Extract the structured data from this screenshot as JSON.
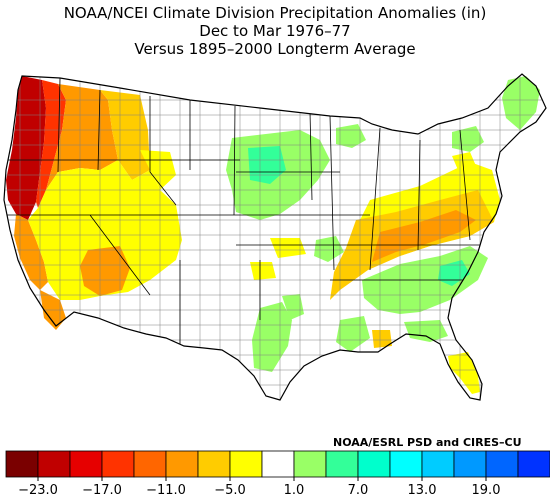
{
  "title": {
    "line1": "NOAA/NCEI Climate Division Precipitation Anomalies (in)",
    "line2": "Dec to Mar 1976–77",
    "line3": "Versus 1895–2000 Longterm Average"
  },
  "credit": "NOAA/ESRL PSD and CIRES–CU",
  "legend": {
    "colors": [
      "#7a0000",
      "#c00000",
      "#e60000",
      "#ff3300",
      "#ff6600",
      "#ff9900",
      "#ffcc00",
      "#ffff00",
      "#ffffff",
      "#99ff66",
      "#33ff99",
      "#00ffcc",
      "#00ffff",
      "#00ccff",
      "#0099ff",
      "#0066ff",
      "#0033ff"
    ],
    "tick_labels": [
      "−23.0",
      "−17.0",
      "−11.0",
      "−5.0",
      "1.0",
      "7.0",
      "13.0",
      "19.0"
    ]
  },
  "palette": {
    "outline": "#000000",
    "division_line": "#808080"
  }
}
